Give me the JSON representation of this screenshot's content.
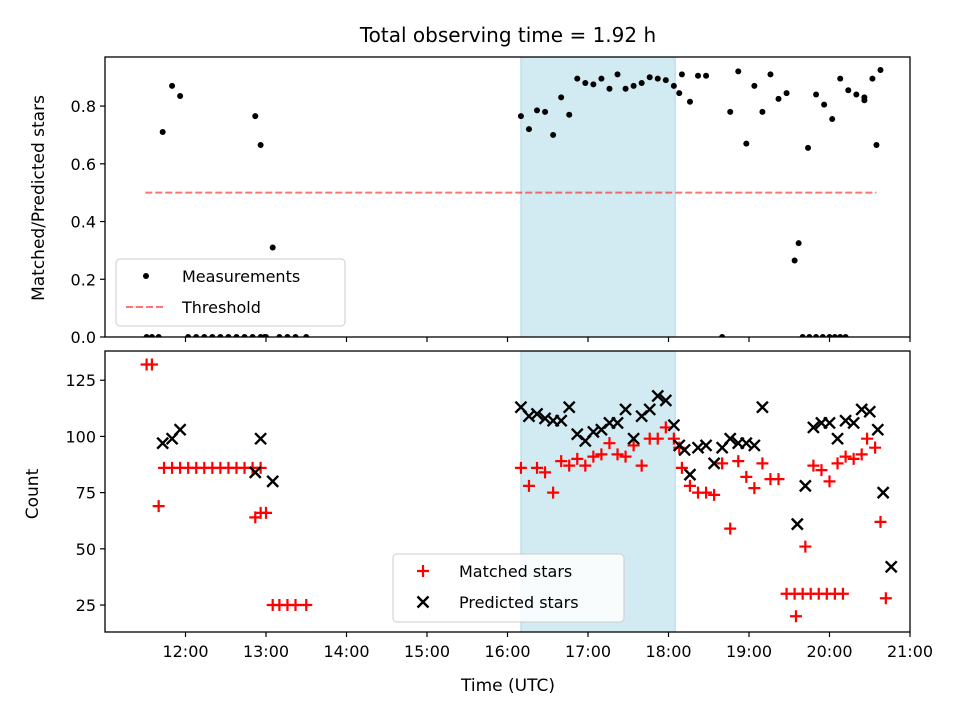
{
  "figure": {
    "title": "Total observing time = 1.92 h",
    "xlabel": "Time (UTC)"
  },
  "colors": {
    "shade": "#add8e6",
    "threshold": "#ff0000",
    "measurements": "#000000",
    "matched": "#ff0000",
    "predicted": "#000000"
  },
  "chart_data": [
    {
      "type": "scatter",
      "ylabel": "Matched/Predicted stars",
      "xlim": [
        "11:00",
        "21:00"
      ],
      "ylim": [
        0,
        0.97
      ],
      "x_ticks": [
        "12:00",
        "13:00",
        "14:00",
        "15:00",
        "16:00",
        "17:00",
        "18:00",
        "19:00",
        "20:00",
        "21:00"
      ],
      "y_ticks": [
        "0.0",
        "0.2",
        "0.4",
        "0.6",
        "0.8"
      ],
      "shaded_interval": [
        "16:10",
        "18:05"
      ],
      "legend": {
        "position": "lower-left",
        "entries": [
          "Measurements",
          "Threshold"
        ]
      },
      "threshold": {
        "name": "Threshold",
        "value": 0.5,
        "x": [
          "11:30",
          "20:35"
        ]
      },
      "series": [
        {
          "name": "Measurements",
          "marker": "dot",
          "points": [
            [
              "11:31",
              0
            ],
            [
              "11:35",
              0
            ],
            [
              "11:40",
              0
            ],
            [
              "11:43",
              0.71
            ],
            [
              "11:50",
              0.87
            ],
            [
              "11:56",
              0.835
            ],
            [
              "12:02",
              0
            ],
            [
              "12:08",
              0
            ],
            [
              "12:14",
              0
            ],
            [
              "12:20",
              0
            ],
            [
              "12:26",
              0
            ],
            [
              "12:32",
              0
            ],
            [
              "12:38",
              0
            ],
            [
              "12:44",
              0
            ],
            [
              "12:50",
              0
            ],
            [
              "12:56",
              0
            ],
            [
              "12:59",
              0
            ],
            [
              "12:52",
              0.765
            ],
            [
              "12:56",
              0.665
            ],
            [
              "13:00",
              0
            ],
            [
              "13:05",
              0.31
            ],
            [
              "13:10",
              0
            ],
            [
              "13:16",
              0
            ],
            [
              "13:22",
              0
            ],
            [
              "13:30",
              0
            ],
            [
              "16:10",
              0.765
            ],
            [
              "16:16",
              0.72
            ],
            [
              "16:22",
              0.785
            ],
            [
              "16:28",
              0.78
            ],
            [
              "16:34",
              0.7
            ],
            [
              "16:40",
              0.83
            ],
            [
              "16:46",
              0.77
            ],
            [
              "16:52",
              0.895
            ],
            [
              "16:58",
              0.88
            ],
            [
              "17:04",
              0.875
            ],
            [
              "17:10",
              0.895
            ],
            [
              "17:16",
              0.86
            ],
            [
              "17:22",
              0.91
            ],
            [
              "17:28",
              0.86
            ],
            [
              "17:34",
              0.87
            ],
            [
              "17:40",
              0.88
            ],
            [
              "17:46",
              0.9
            ],
            [
              "17:52",
              0.895
            ],
            [
              "17:58",
              0.89
            ],
            [
              "18:04",
              0.87
            ],
            [
              "18:08",
              0.845
            ],
            [
              "18:10",
              0.91
            ],
            [
              "18:16",
              0.815
            ],
            [
              "18:22",
              0.905
            ],
            [
              "18:28",
              0.905
            ],
            [
              "18:40",
              0
            ],
            [
              "18:46",
              0.78
            ],
            [
              "18:52",
              0.92
            ],
            [
              "18:58",
              0.67
            ],
            [
              "19:04",
              0.87
            ],
            [
              "19:10",
              0.78
            ],
            [
              "19:16",
              0.91
            ],
            [
              "19:22",
              0.825
            ],
            [
              "19:28",
              0.845
            ],
            [
              "19:34",
              0.265
            ],
            [
              "19:40",
              0
            ],
            [
              "19:45",
              0
            ],
            [
              "19:50",
              0
            ],
            [
              "19:55",
              0
            ],
            [
              "20:00",
              0
            ],
            [
              "20:04",
              0
            ],
            [
              "20:08",
              0
            ],
            [
              "20:12",
              0
            ],
            [
              "19:37",
              0.325
            ],
            [
              "19:44",
              0.655
            ],
            [
              "19:50",
              0.84
            ],
            [
              "19:56",
              0.805
            ],
            [
              "20:02",
              0.755
            ],
            [
              "20:08",
              0.895
            ],
            [
              "20:14",
              0.855
            ],
            [
              "20:20",
              0.84
            ],
            [
              "20:26",
              0.82
            ],
            [
              "20:32",
              0.895
            ],
            [
              "20:38",
              0.925
            ],
            [
              "20:26",
              0.83
            ],
            [
              "20:35",
              0.665
            ]
          ]
        }
      ]
    },
    {
      "type": "scatter",
      "ylabel": "Count",
      "xlim": [
        "11:00",
        "21:00"
      ],
      "ylim": [
        13,
        138
      ],
      "x_ticks": [
        "12:00",
        "13:00",
        "14:00",
        "15:00",
        "16:00",
        "17:00",
        "18:00",
        "19:00",
        "20:00",
        "21:00"
      ],
      "y_ticks": [
        "25",
        "50",
        "75",
        "100",
        "125"
      ],
      "shaded_interval": [
        "16:10",
        "18:05"
      ],
      "legend": {
        "position": "lower-center",
        "entries": [
          "Matched stars",
          "Predicted stars"
        ]
      },
      "series": [
        {
          "name": "Matched stars",
          "marker": "plus",
          "points": [
            [
              "11:31",
              132
            ],
            [
              "11:35",
              132
            ],
            [
              "11:40",
              69
            ],
            [
              "11:44",
              86
            ],
            [
              "11:50",
              86
            ],
            [
              "11:56",
              86
            ],
            [
              "12:02",
              86
            ],
            [
              "12:08",
              86
            ],
            [
              "12:14",
              86
            ],
            [
              "12:20",
              86
            ],
            [
              "12:26",
              86
            ],
            [
              "12:32",
              86
            ],
            [
              "12:38",
              86
            ],
            [
              "12:44",
              86
            ],
            [
              "12:50",
              86
            ],
            [
              "12:56",
              86
            ],
            [
              "12:52",
              64
            ],
            [
              "12:56",
              66
            ],
            [
              "13:00",
              66
            ],
            [
              "13:05",
              25
            ],
            [
              "13:10",
              25
            ],
            [
              "13:16",
              25
            ],
            [
              "13:22",
              25
            ],
            [
              "13:30",
              25
            ],
            [
              "16:10",
              86
            ],
            [
              "16:16",
              78
            ],
            [
              "16:22",
              86
            ],
            [
              "16:28",
              84
            ],
            [
              "16:34",
              75
            ],
            [
              "16:40",
              89
            ],
            [
              "16:46",
              87
            ],
            [
              "16:52",
              90
            ],
            [
              "16:58",
              87
            ],
            [
              "17:04",
              91
            ],
            [
              "17:10",
              92
            ],
            [
              "17:16",
              97
            ],
            [
              "17:22",
              92
            ],
            [
              "17:28",
              91
            ],
            [
              "17:34",
              96
            ],
            [
              "17:40",
              87
            ],
            [
              "17:46",
              99
            ],
            [
              "17:52",
              99
            ],
            [
              "17:58",
              104
            ],
            [
              "18:04",
              99
            ],
            [
              "18:08",
              95
            ],
            [
              "18:10",
              86
            ],
            [
              "18:16",
              78
            ],
            [
              "18:22",
              75
            ],
            [
              "18:28",
              75
            ],
            [
              "18:34",
              74
            ],
            [
              "18:40",
              88
            ],
            [
              "18:46",
              59
            ],
            [
              "18:52",
              89
            ],
            [
              "18:58",
              82
            ],
            [
              "19:04",
              77
            ],
            [
              "19:10",
              88
            ],
            [
              "19:16",
              81
            ],
            [
              "19:22",
              81
            ],
            [
              "19:28",
              30
            ],
            [
              "19:34",
              30
            ],
            [
              "19:40",
              30
            ],
            [
              "19:46",
              30
            ],
            [
              "19:52",
              30
            ],
            [
              "19:58",
              30
            ],
            [
              "20:04",
              30
            ],
            [
              "20:10",
              30
            ],
            [
              "19:35",
              20
            ],
            [
              "19:42",
              51
            ],
            [
              "19:48",
              87
            ],
            [
              "19:54",
              85
            ],
            [
              "20:00",
              80
            ],
            [
              "20:06",
              88
            ],
            [
              "20:12",
              91
            ],
            [
              "20:18",
              90
            ],
            [
              "20:24",
              92
            ],
            [
              "20:28",
              99
            ],
            [
              "20:34",
              95
            ],
            [
              "20:38",
              62
            ],
            [
              "20:42",
              28
            ]
          ]
        },
        {
          "name": "Predicted stars",
          "marker": "x",
          "points": [
            [
              "11:43",
              97
            ],
            [
              "11:50",
              99
            ],
            [
              "11:56",
              103
            ],
            [
              "12:52",
              84
            ],
            [
              "12:56",
              99
            ],
            [
              "13:05",
              80
            ],
            [
              "16:10",
              113
            ],
            [
              "16:16",
              109
            ],
            [
              "16:22",
              110
            ],
            [
              "16:28",
              108
            ],
            [
              "16:34",
              107
            ],
            [
              "16:40",
              107
            ],
            [
              "16:46",
              113
            ],
            [
              "16:52",
              101
            ],
            [
              "16:58",
              98
            ],
            [
              "17:04",
              102
            ],
            [
              "17:10",
              103
            ],
            [
              "17:16",
              106
            ],
            [
              "17:22",
              106
            ],
            [
              "17:28",
              112
            ],
            [
              "17:34",
              99
            ],
            [
              "17:40",
              109
            ],
            [
              "17:46",
              112
            ],
            [
              "17:52",
              118
            ],
            [
              "17:58",
              116
            ],
            [
              "18:04",
              105
            ],
            [
              "18:08",
              96
            ],
            [
              "18:12",
              94
            ],
            [
              "18:16",
              83
            ],
            [
              "18:22",
              95
            ],
            [
              "18:28",
              96
            ],
            [
              "18:34",
              88
            ],
            [
              "18:40",
              95
            ],
            [
              "18:46",
              99
            ],
            [
              "18:52",
              97
            ],
            [
              "18:58",
              97
            ],
            [
              "19:04",
              96
            ],
            [
              "19:10",
              113
            ],
            [
              "19:36",
              61
            ],
            [
              "19:42",
              78
            ],
            [
              "19:48",
              104
            ],
            [
              "19:54",
              106
            ],
            [
              "20:00",
              106
            ],
            [
              "20:06",
              99
            ],
            [
              "20:12",
              107
            ],
            [
              "20:18",
              106
            ],
            [
              "20:24",
              112
            ],
            [
              "20:30",
              111
            ],
            [
              "20:36",
              103
            ],
            [
              "20:40",
              75
            ],
            [
              "20:46",
              42
            ]
          ]
        }
      ]
    }
  ]
}
